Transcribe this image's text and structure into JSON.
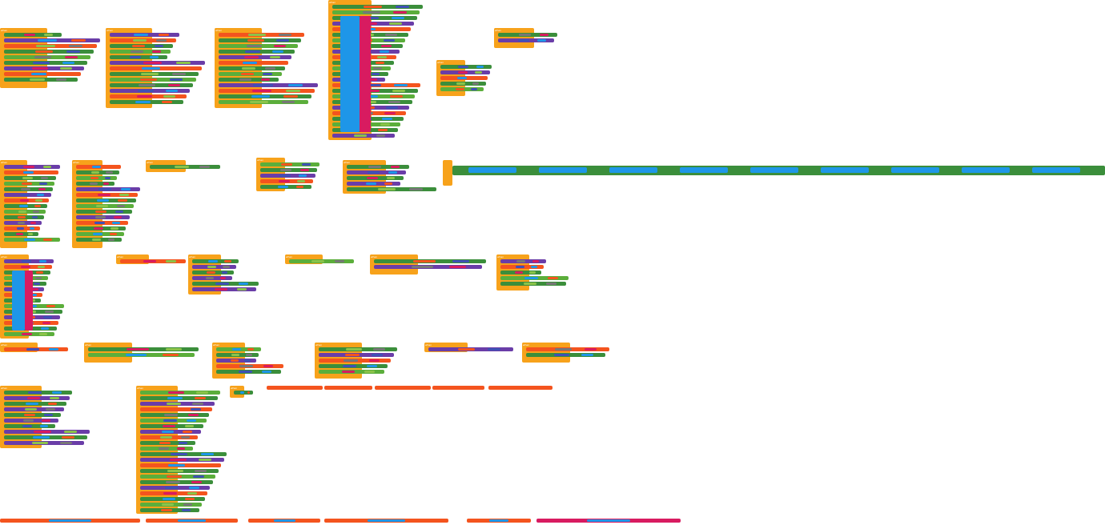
{
  "workspace": {
    "type": "blocks-editor",
    "keywords": {
      "when": "when",
      "do": "do",
      "set": "set",
      "call": "call",
      "get": "get"
    }
  },
  "colors": {
    "event": "#F7A21B",
    "component_set": "#3B8E3B",
    "component_get": "#5BAE3B",
    "procedure": "#6A3DA8",
    "math_text": "#1E96E8",
    "variable": "#F4541E",
    "logic": "#D81B60",
    "text_string": "#8BC34A",
    "gray": "#777777",
    "list": "#3F51B5"
  }
}
